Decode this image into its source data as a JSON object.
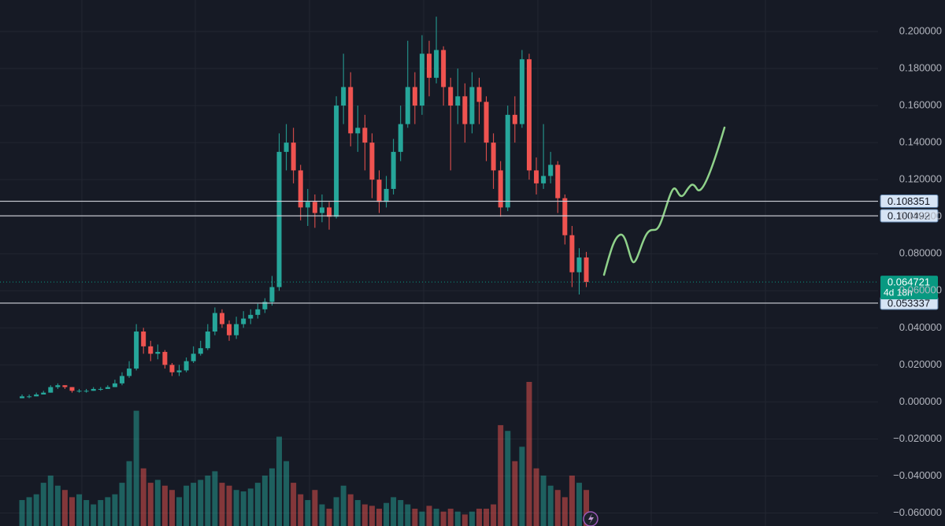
{
  "chart_data": {
    "type": "candlestick",
    "open": [
      0.002,
      0.003,
      0.003,
      0.004,
      0.005,
      0.008,
      0.009,
      0.008,
      0.006,
      0.006,
      0.006,
      0.007,
      0.007,
      0.008,
      0.01,
      0.014,
      0.018,
      0.038,
      0.03,
      0.026,
      0.027,
      0.02,
      0.016,
      0.017,
      0.022,
      0.026,
      0.029,
      0.038,
      0.048,
      0.042,
      0.036,
      0.042,
      0.045,
      0.047,
      0.05,
      0.054,
      0.062,
      0.135,
      0.14,
      0.125,
      0.105,
      0.108,
      0.102,
      0.105,
      0.1,
      0.16,
      0.17,
      0.145,
      0.148,
      0.14,
      0.12,
      0.108,
      0.115,
      0.135,
      0.15,
      0.17,
      0.16,
      0.188,
      0.175,
      0.19,
      0.17,
      0.16,
      0.165,
      0.15,
      0.17,
      0.162,
      0.14,
      0.125,
      0.105,
      0.155,
      0.15,
      0.185,
      0.125,
      0.118,
      0.122,
      0.128,
      0.11,
      0.09,
      0.07,
      0.078
    ],
    "high": [
      0.004,
      0.004,
      0.005,
      0.006,
      0.009,
      0.01,
      0.009,
      0.008,
      0.007,
      0.007,
      0.008,
      0.008,
      0.009,
      0.012,
      0.016,
      0.022,
      0.042,
      0.04,
      0.033,
      0.031,
      0.028,
      0.021,
      0.02,
      0.024,
      0.03,
      0.033,
      0.042,
      0.051,
      0.05,
      0.044,
      0.046,
      0.049,
      0.05,
      0.053,
      0.056,
      0.068,
      0.145,
      0.15,
      0.148,
      0.128,
      0.115,
      0.112,
      0.112,
      0.108,
      0.165,
      0.188,
      0.178,
      0.16,
      0.155,
      0.145,
      0.125,
      0.122,
      0.142,
      0.16,
      0.195,
      0.178,
      0.198,
      0.195,
      0.208,
      0.192,
      0.175,
      0.18,
      0.172,
      0.178,
      0.175,
      0.165,
      0.145,
      0.13,
      0.16,
      0.165,
      0.19,
      0.188,
      0.132,
      0.15,
      0.135,
      0.13,
      0.112,
      0.095,
      0.083,
      0.081
    ],
    "low": [
      0.002,
      0.002,
      0.003,
      0.004,
      0.005,
      0.007,
      0.007,
      0.005,
      0.005,
      0.005,
      0.006,
      0.006,
      0.007,
      0.008,
      0.009,
      0.013,
      0.017,
      0.026,
      0.022,
      0.023,
      0.018,
      0.014,
      0.014,
      0.016,
      0.021,
      0.025,
      0.028,
      0.036,
      0.04,
      0.033,
      0.034,
      0.04,
      0.042,
      0.045,
      0.048,
      0.052,
      0.06,
      0.125,
      0.118,
      0.098,
      0.095,
      0.094,
      0.097,
      0.093,
      0.099,
      0.15,
      0.138,
      0.135,
      0.125,
      0.11,
      0.102,
      0.105,
      0.112,
      0.13,
      0.148,
      0.15,
      0.155,
      0.165,
      0.172,
      0.16,
      0.125,
      0.15,
      0.14,
      0.145,
      0.15,
      0.13,
      0.115,
      0.1,
      0.103,
      0.14,
      0.148,
      0.12,
      0.112,
      0.115,
      0.118,
      0.102,
      0.085,
      0.062,
      0.058,
      0.062
    ],
    "close": [
      0.003,
      0.003,
      0.004,
      0.005,
      0.008,
      0.009,
      0.008,
      0.006,
      0.006,
      0.006,
      0.007,
      0.007,
      0.008,
      0.01,
      0.014,
      0.018,
      0.038,
      0.03,
      0.026,
      0.027,
      0.02,
      0.016,
      0.017,
      0.022,
      0.026,
      0.029,
      0.038,
      0.048,
      0.042,
      0.036,
      0.042,
      0.045,
      0.047,
      0.05,
      0.054,
      0.062,
      0.135,
      0.14,
      0.125,
      0.105,
      0.108,
      0.102,
      0.105,
      0.1,
      0.16,
      0.17,
      0.145,
      0.148,
      0.14,
      0.12,
      0.108,
      0.115,
      0.135,
      0.15,
      0.17,
      0.16,
      0.188,
      0.175,
      0.19,
      0.17,
      0.16,
      0.165,
      0.15,
      0.17,
      0.162,
      0.14,
      0.125,
      0.105,
      0.155,
      0.15,
      0.185,
      0.125,
      0.118,
      0.122,
      0.128,
      0.11,
      0.09,
      0.07,
      0.078,
      0.064721
    ],
    "volume": [
      18,
      20,
      22,
      30,
      35,
      28,
      25,
      20,
      22,
      18,
      15,
      18,
      20,
      22,
      30,
      45,
      80,
      40,
      30,
      32,
      28,
      25,
      20,
      28,
      30,
      32,
      35,
      38,
      30,
      28,
      25,
      24,
      26,
      30,
      35,
      40,
      62,
      45,
      30,
      22,
      18,
      25,
      15,
      12,
      20,
      28,
      22,
      18,
      15,
      14,
      12,
      16,
      20,
      18,
      15,
      12,
      10,
      14,
      12,
      10,
      12,
      10,
      8,
      10,
      12,
      12,
      15,
      70,
      66,
      45,
      55,
      100,
      40,
      35,
      28,
      25,
      20,
      35,
      30,
      25
    ],
    "up_color": "#26a69a",
    "down_color": "#ef5350",
    "ylim": [
      -0.067,
      0.217
    ],
    "yticks": [
      {
        "value": 0.2,
        "label": "0.200000"
      },
      {
        "value": 0.18,
        "label": "0.180000"
      },
      {
        "value": 0.16,
        "label": "0.160000"
      },
      {
        "value": 0.14,
        "label": "0.140000"
      },
      {
        "value": 0.12,
        "label": "0.120000"
      },
      {
        "value": 0.1,
        "label": "0.100000"
      },
      {
        "value": 0.08,
        "label": "0.080000"
      },
      {
        "value": 0.06,
        "label": "0.060000"
      },
      {
        "value": 0.04,
        "label": "0.040000"
      },
      {
        "value": 0.02,
        "label": "0.020000"
      },
      {
        "value": 0,
        "label": "0.000000"
      },
      {
        "value": -0.02,
        "label": "−0.020000"
      },
      {
        "value": -0.04,
        "label": "−0.040000"
      },
      {
        "value": -0.06,
        "label": "−0.060000"
      }
    ],
    "grid": true,
    "price_lines": [
      0.108351,
      0.100492,
      0.053337
    ],
    "last_price": 0.064721,
    "countdown": "4d 18h"
  }
}
